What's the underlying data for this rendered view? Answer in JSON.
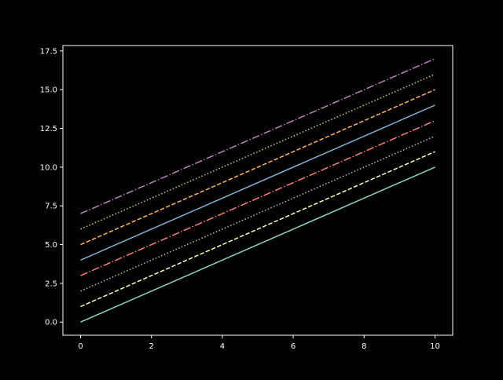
{
  "chart_data": {
    "type": "line",
    "title": "",
    "xlabel": "",
    "ylabel": "",
    "xlim": [
      -0.5,
      10.5
    ],
    "ylim": [
      -0.85,
      17.85
    ],
    "x_ticks": [
      0,
      2,
      4,
      6,
      8,
      10
    ],
    "x_tick_labels": [
      "0",
      "2",
      "4",
      "6",
      "8",
      "10"
    ],
    "y_ticks": [
      0,
      2.5,
      5,
      7.5,
      10,
      12.5,
      15,
      17.5
    ],
    "y_tick_labels": [
      "0.0",
      "2.5",
      "5.0",
      "7.5",
      "10.0",
      "12.5",
      "15.0",
      "17.5"
    ],
    "grid": false,
    "background": "#000000",
    "axes_color": "#ffffff",
    "series": [
      {
        "x": [
          0,
          10
        ],
        "values": [
          0,
          10
        ],
        "color": "#8dd3c7",
        "linestyle": "solid"
      },
      {
        "x": [
          0,
          10
        ],
        "values": [
          1,
          11
        ],
        "color": "#feffb3",
        "linestyle": "dashed"
      },
      {
        "x": [
          0,
          10
        ],
        "values": [
          2,
          12
        ],
        "color": "#bfbbd9",
        "linestyle": "dotted"
      },
      {
        "x": [
          0,
          10
        ],
        "values": [
          3,
          13
        ],
        "color": "#fa8174",
        "linestyle": "dashdot"
      },
      {
        "x": [
          0,
          10
        ],
        "values": [
          4,
          14
        ],
        "color": "#81b1d2",
        "linestyle": "solid"
      },
      {
        "x": [
          0,
          10
        ],
        "values": [
          5,
          15
        ],
        "color": "#fdb462",
        "linestyle": "dashed"
      },
      {
        "x": [
          0,
          10
        ],
        "values": [
          6,
          16
        ],
        "color": "#b3de69",
        "linestyle": "dotted"
      },
      {
        "x": [
          0,
          10
        ],
        "values": [
          7,
          17
        ],
        "color": "#bc82bd",
        "linestyle": "dashdot"
      }
    ]
  }
}
